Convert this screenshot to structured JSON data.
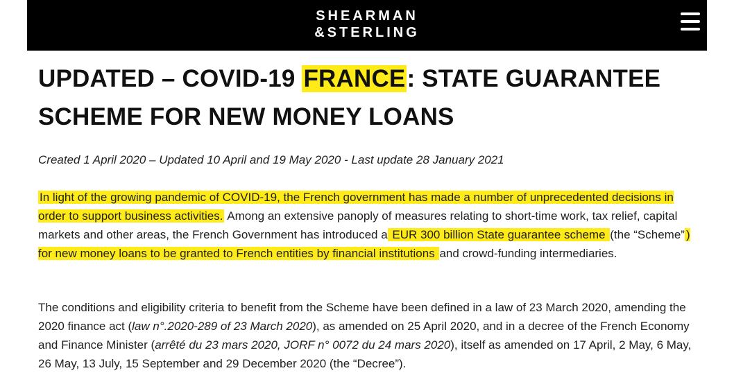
{
  "header": {
    "logo_line1": "SHEARMAN",
    "logo_line2": "&STERLING",
    "background": "#000000",
    "menu_icon": "hamburger-icon"
  },
  "article": {
    "title_part1": "UPDATED – COVID-19 ",
    "title_highlight": "FRANCE",
    "title_part2": ": STATE GUARANTEE SCHEME FOR NEW MONEY LOANS",
    "meta": "Created 1 April 2020 – Updated 10 April and 19 May 2020 - Last update 28 January 2021",
    "highlight_color": "#ffeb17",
    "p1": {
      "hl1": "In light of the growing pandemic of COVID-19, the French government has made a number of unprecedented decisions in order to support business activities.",
      "t1": " Among an extensive panoply of measures relating to short-time work, tax relief, capital markets and other areas, the French Government has introduced a",
      "hl2": " EUR 300 billion State guarantee scheme ",
      "t2": "(the “Scheme”",
      "hl3": ") for new money loans to be granted to French entities by financial institutions ",
      "t3": "and crowd-funding intermediaries."
    },
    "p2": {
      "t1": "The conditions and eligibility criteria to benefit from the Scheme have been defined in a law of 23 March 2020, amending the 2020 finance act (",
      "em1": "law n°.2020-289 of 23 March 2020",
      "t2": "), as amended on 25 April 2020, and in a decree of the French Economy and Finance Minister (",
      "em2": "arrêté du 23 mars 2020, JORF n° 0072 du 24 mars 2020",
      "t3": "), itself as amended on 17 April, 2 May, 6 May, 26 May, 13 July, 15 September and 29 December 2020 (the “Decree”)."
    }
  }
}
